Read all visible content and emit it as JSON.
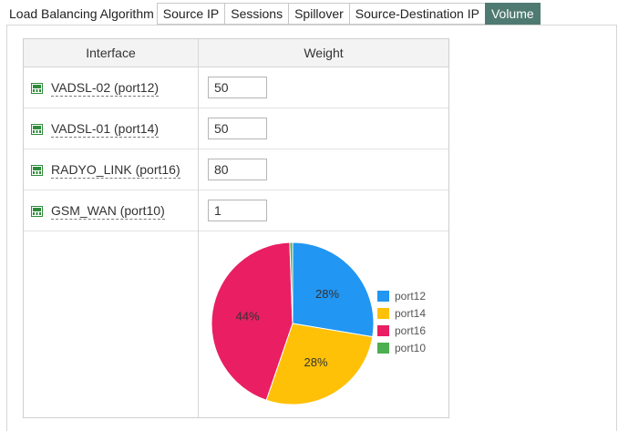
{
  "tabs": {
    "label": "Load Balancing Algorithm",
    "items": [
      "Source IP",
      "Sessions",
      "Spillover",
      "Source-Destination IP",
      "Volume"
    ],
    "active": "Volume"
  },
  "table": {
    "headers": {
      "interface": "Interface",
      "weight": "Weight"
    },
    "rows": [
      {
        "interface": "VADSL-02 (port12)",
        "weight": "50"
      },
      {
        "interface": "VADSL-01 (port14)",
        "weight": "50"
      },
      {
        "interface": "RADYO_LINK (port16)",
        "weight": "80"
      },
      {
        "interface": "GSM_WAN (port10)",
        "weight": "1"
      }
    ]
  },
  "chart_data": {
    "type": "pie",
    "categories": [
      "port12",
      "port14",
      "port16",
      "port10"
    ],
    "values": [
      50,
      50,
      80,
      1
    ],
    "labels": [
      "28%",
      "28%",
      "44%",
      ""
    ],
    "colors": [
      "#2196f3",
      "#ffc107",
      "#e91e63",
      "#4caf50"
    ],
    "legend": "right"
  },
  "colors": {
    "active_tab": "#4f7a72",
    "port_icon": "#2e8b3a"
  },
  "icons": {
    "interface": "network-port-icon"
  }
}
